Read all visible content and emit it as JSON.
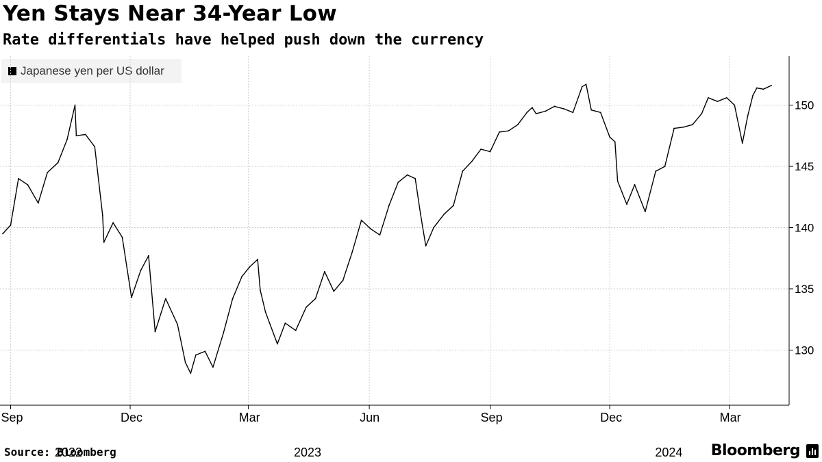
{
  "title": "Yen Stays Near 34-Year Low",
  "subtitle": "Rate differentials have helped push down the currency",
  "legend": "Japanese yen per US dollar",
  "source": "Source: Bloomberg",
  "brand": "Bloomberg",
  "chart_data": {
    "type": "line",
    "title": "Yen Stays Near 34-Year Low",
    "subtitle": "Rate differentials have helped push down the currency",
    "xlabel": "",
    "ylabel": "",
    "ylim": [
      125.5,
      154
    ],
    "y_ticks": [
      130,
      135,
      140,
      145,
      150
    ],
    "y_tick_labels": [
      "130",
      "135",
      "140",
      "145",
      "150"
    ],
    "x_ticks": [
      {
        "date": "2022-09-01",
        "label": "Sep"
      },
      {
        "date": "2022-12-01",
        "label": "Dec"
      },
      {
        "date": "2023-03-01",
        "label": "Mar"
      },
      {
        "date": "2023-06-01",
        "label": "Jun"
      },
      {
        "date": "2023-09-01",
        "label": "Sep"
      },
      {
        "date": "2023-12-01",
        "label": "Dec"
      },
      {
        "date": "2024-03-01",
        "label": "Mar"
      }
    ],
    "year_labels": [
      {
        "date": "2022-10-15",
        "label": "2022"
      },
      {
        "date": "2023-04-15",
        "label": "2023"
      },
      {
        "date": "2024-01-15",
        "label": "2024"
      }
    ],
    "x_range": [
      "2022-08-26",
      "2024-04-02"
    ],
    "grid": true,
    "legend_position": "top-left",
    "series": [
      {
        "name": "Japanese yen per US dollar",
        "points": [
          [
            "2022-08-26",
            139.5
          ],
          [
            "2022-09-01",
            140.2
          ],
          [
            "2022-09-07",
            144.0
          ],
          [
            "2022-09-14",
            143.5
          ],
          [
            "2022-09-22",
            142.0
          ],
          [
            "2022-09-29",
            144.5
          ],
          [
            "2022-10-07",
            145.3
          ],
          [
            "2022-10-14",
            147.2
          ],
          [
            "2022-10-20",
            150.0
          ],
          [
            "2022-10-21",
            147.5
          ],
          [
            "2022-10-28",
            147.6
          ],
          [
            "2022-11-04",
            146.6
          ],
          [
            "2022-11-10",
            141.0
          ],
          [
            "2022-11-11",
            138.8
          ],
          [
            "2022-11-18",
            140.4
          ],
          [
            "2022-11-25",
            139.2
          ],
          [
            "2022-12-02",
            134.3
          ],
          [
            "2022-12-09",
            136.5
          ],
          [
            "2022-12-15",
            137.7
          ],
          [
            "2022-12-20",
            131.5
          ],
          [
            "2022-12-28",
            134.2
          ],
          [
            "2023-01-06",
            132.1
          ],
          [
            "2023-01-12",
            129.0
          ],
          [
            "2023-01-16",
            128.1
          ],
          [
            "2023-01-20",
            129.6
          ],
          [
            "2023-01-27",
            129.9
          ],
          [
            "2023-02-02",
            128.6
          ],
          [
            "2023-02-10",
            131.4
          ],
          [
            "2023-02-17",
            134.2
          ],
          [
            "2023-02-24",
            136.0
          ],
          [
            "2023-03-02",
            136.8
          ],
          [
            "2023-03-08",
            137.4
          ],
          [
            "2023-03-10",
            134.9
          ],
          [
            "2023-03-14",
            133.1
          ],
          [
            "2023-03-23",
            130.5
          ],
          [
            "2023-03-29",
            132.2
          ],
          [
            "2023-04-06",
            131.6
          ],
          [
            "2023-04-14",
            133.5
          ],
          [
            "2023-04-21",
            134.2
          ],
          [
            "2023-04-28",
            136.4
          ],
          [
            "2023-05-05",
            134.8
          ],
          [
            "2023-05-12",
            135.7
          ],
          [
            "2023-05-19",
            138.0
          ],
          [
            "2023-05-26",
            140.6
          ],
          [
            "2023-06-02",
            139.9
          ],
          [
            "2023-06-09",
            139.4
          ],
          [
            "2023-06-16",
            141.8
          ],
          [
            "2023-06-23",
            143.7
          ],
          [
            "2023-06-30",
            144.3
          ],
          [
            "2023-07-06",
            144.0
          ],
          [
            "2023-07-10",
            141.1
          ],
          [
            "2023-07-14",
            138.5
          ],
          [
            "2023-07-20",
            140.0
          ],
          [
            "2023-07-28",
            141.1
          ],
          [
            "2023-08-04",
            141.8
          ],
          [
            "2023-08-11",
            144.6
          ],
          [
            "2023-08-18",
            145.4
          ],
          [
            "2023-08-25",
            146.4
          ],
          [
            "2023-09-01",
            146.2
          ],
          [
            "2023-09-08",
            147.8
          ],
          [
            "2023-09-15",
            147.9
          ],
          [
            "2023-09-22",
            148.4
          ],
          [
            "2023-09-29",
            149.4
          ],
          [
            "2023-10-03",
            149.8
          ],
          [
            "2023-10-06",
            149.3
          ],
          [
            "2023-10-13",
            149.5
          ],
          [
            "2023-10-20",
            149.9
          ],
          [
            "2023-10-27",
            149.7
          ],
          [
            "2023-11-03",
            149.4
          ],
          [
            "2023-11-10",
            151.5
          ],
          [
            "2023-11-13",
            151.7
          ],
          [
            "2023-11-17",
            149.6
          ],
          [
            "2023-11-24",
            149.4
          ],
          [
            "2023-12-01",
            147.4
          ],
          [
            "2023-12-05",
            147.0
          ],
          [
            "2023-12-07",
            143.8
          ],
          [
            "2023-12-14",
            141.9
          ],
          [
            "2023-12-20",
            143.5
          ],
          [
            "2023-12-28",
            141.3
          ],
          [
            "2024-01-05",
            144.6
          ],
          [
            "2024-01-12",
            145.0
          ],
          [
            "2024-01-19",
            148.1
          ],
          [
            "2024-01-26",
            148.2
          ],
          [
            "2024-02-02",
            148.4
          ],
          [
            "2024-02-09",
            149.3
          ],
          [
            "2024-02-14",
            150.6
          ],
          [
            "2024-02-21",
            150.3
          ],
          [
            "2024-02-28",
            150.6
          ],
          [
            "2024-03-05",
            150.0
          ],
          [
            "2024-03-11",
            146.9
          ],
          [
            "2024-03-15",
            149.1
          ],
          [
            "2024-03-19",
            150.8
          ],
          [
            "2024-03-22",
            151.4
          ],
          [
            "2024-03-27",
            151.3
          ],
          [
            "2024-03-29",
            151.4
          ],
          [
            "2024-04-02",
            151.6
          ]
        ]
      }
    ]
  }
}
